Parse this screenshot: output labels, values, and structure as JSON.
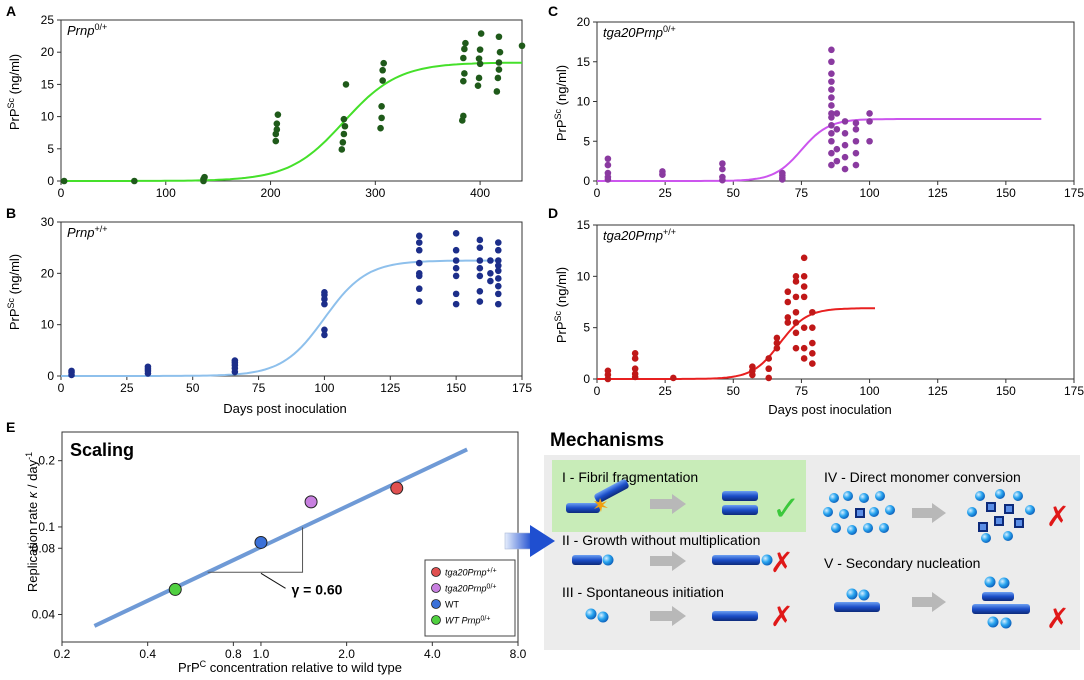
{
  "figure": {
    "x_axis_label": "Days post inoculation",
    "y_axis_label_base": "PrP",
    "y_axis_label_sup": "Sc",
    "y_axis_label_unit": " (ng/ml)"
  },
  "chart_data": [
    {
      "id": "A",
      "type": "scatter",
      "panel_letter": "A",
      "title_base": "Prnp",
      "title_sup": "0/+",
      "color": "#1f5a1a",
      "curve_color": "#45e02a",
      "xlim": [
        0,
        440
      ],
      "ylim": [
        0,
        25
      ],
      "xticks": [
        0,
        100,
        200,
        300,
        400
      ],
      "yticks": [
        0,
        5,
        10,
        15,
        20,
        25
      ],
      "xlabel": "",
      "fit": {
        "top": 18.4,
        "midpoint": 270,
        "scale": 26,
        "x_start": 0,
        "x_end": 440
      },
      "points": [
        [
          3,
          0.0
        ],
        [
          70,
          0.0
        ],
        [
          136,
          0.0
        ],
        [
          136,
          0.3
        ],
        [
          137,
          0.6
        ],
        [
          205,
          6.2
        ],
        [
          205,
          7.3
        ],
        [
          206,
          8.0
        ],
        [
          206,
          8.9
        ],
        [
          207,
          10.3
        ],
        [
          268,
          4.9
        ],
        [
          269,
          6.0
        ],
        [
          270,
          7.3
        ],
        [
          271,
          8.5
        ],
        [
          270,
          9.6
        ],
        [
          272,
          15.0
        ],
        [
          305,
          8.2
        ],
        [
          306,
          9.8
        ],
        [
          306,
          11.6
        ],
        [
          307,
          15.6
        ],
        [
          307,
          17.2
        ],
        [
          308,
          18.3
        ],
        [
          383,
          9.4
        ],
        [
          384,
          10.1
        ],
        [
          384,
          15.5
        ],
        [
          385,
          16.7
        ],
        [
          384,
          19.1
        ],
        [
          385,
          20.5
        ],
        [
          386,
          21.4
        ],
        [
          398,
          14.8
        ],
        [
          399,
          16.0
        ],
        [
          400,
          18.2
        ],
        [
          399,
          19.0
        ],
        [
          400,
          20.4
        ],
        [
          401,
          22.9
        ],
        [
          416,
          13.9
        ],
        [
          417,
          16.0
        ],
        [
          418,
          17.3
        ],
        [
          418,
          18.4
        ],
        [
          419,
          20.0
        ],
        [
          418,
          22.4
        ],
        [
          440,
          21.0
        ]
      ]
    },
    {
      "id": "B",
      "type": "scatter",
      "panel_letter": "B",
      "title_base": "Prnp",
      "title_sup": "+/+",
      "color": "#1c2e8a",
      "curve_color": "#8ec0ec",
      "xlim": [
        0,
        175
      ],
      "ylim": [
        0,
        30
      ],
      "xticks": [
        0,
        25,
        50,
        75,
        100,
        125,
        150,
        175
      ],
      "yticks": [
        0,
        10,
        20,
        30
      ],
      "xlabel": "Days post inoculation",
      "fit": {
        "top": 22.5,
        "midpoint": 100,
        "scale": 8,
        "x_start": 0,
        "x_end": 166
      },
      "points": [
        [
          4,
          0.2
        ],
        [
          4,
          0.7
        ],
        [
          4,
          1.0
        ],
        [
          33,
          0.5
        ],
        [
          33,
          1.0
        ],
        [
          33,
          1.4
        ],
        [
          33,
          1.8
        ],
        [
          66,
          0.8
        ],
        [
          66,
          1.5
        ],
        [
          66,
          2.1
        ],
        [
          66,
          2.6
        ],
        [
          66,
          3.0
        ],
        [
          100,
          8.0
        ],
        [
          100,
          9.0
        ],
        [
          100,
          14.0
        ],
        [
          100,
          15.0
        ],
        [
          100,
          15.8
        ],
        [
          100,
          16.3
        ],
        [
          136,
          14.5
        ],
        [
          136,
          17.0
        ],
        [
          136,
          19.5
        ],
        [
          136,
          20.0
        ],
        [
          136,
          22.0
        ],
        [
          136,
          24.5
        ],
        [
          136,
          26.0
        ],
        [
          136,
          27.3
        ],
        [
          150,
          14.0
        ],
        [
          150,
          16.0
        ],
        [
          150,
          19.5
        ],
        [
          150,
          21.0
        ],
        [
          150,
          22.5
        ],
        [
          150,
          24.5
        ],
        [
          150,
          27.8
        ],
        [
          159,
          14.5
        ],
        [
          159,
          16.5
        ],
        [
          159,
          19.5
        ],
        [
          159,
          21.0
        ],
        [
          159,
          22.5
        ],
        [
          159,
          25.0
        ],
        [
          159,
          26.5
        ],
        [
          163,
          18.5
        ],
        [
          163,
          20.0
        ],
        [
          163,
          22.5
        ],
        [
          166,
          14.0
        ],
        [
          166,
          16.0
        ],
        [
          166,
          17.5
        ],
        [
          166,
          19.0
        ],
        [
          166,
          20.5
        ],
        [
          166,
          21.5
        ],
        [
          166,
          22.5
        ],
        [
          166,
          24.5
        ],
        [
          166,
          26.0
        ]
      ]
    },
    {
      "id": "C",
      "type": "scatter",
      "panel_letter": "C",
      "title_base": "tga20Prnp",
      "title_sup": "0/+",
      "color": "#8a3aa0",
      "curve_color": "#cc55ee",
      "xlim": [
        0,
        175
      ],
      "ylim": [
        0,
        20
      ],
      "xticks": [
        0,
        25,
        50,
        75,
        100,
        125,
        150,
        175
      ],
      "yticks": [
        0,
        5,
        10,
        15,
        20
      ],
      "xlabel": "",
      "fit": {
        "top": 7.8,
        "midpoint": 75,
        "scale": 5,
        "x_start": 0,
        "x_end": 163
      },
      "points": [
        [
          4,
          0.2
        ],
        [
          4,
          0.5
        ],
        [
          4,
          1.0
        ],
        [
          4,
          2.0
        ],
        [
          4,
          2.8
        ],
        [
          24,
          0.8
        ],
        [
          24,
          1.2
        ],
        [
          46,
          0.1
        ],
        [
          46,
          0.5
        ],
        [
          46,
          1.5
        ],
        [
          46,
          2.2
        ],
        [
          68,
          0.2
        ],
        [
          68,
          0.4
        ],
        [
          68,
          0.7
        ],
        [
          68,
          1.0
        ],
        [
          86,
          2.0
        ],
        [
          86,
          3.5
        ],
        [
          86,
          5.0
        ],
        [
          86,
          6.0
        ],
        [
          86,
          7.0
        ],
        [
          86,
          8.0
        ],
        [
          86,
          8.5
        ],
        [
          86,
          9.5
        ],
        [
          86,
          10.5
        ],
        [
          86,
          11.5
        ],
        [
          86,
          12.5
        ],
        [
          86,
          13.5
        ],
        [
          86,
          15.0
        ],
        [
          86,
          16.5
        ],
        [
          88,
          2.5
        ],
        [
          88,
          4.0
        ],
        [
          88,
          6.5
        ],
        [
          88,
          8.5
        ],
        [
          91,
          1.5
        ],
        [
          91,
          3.0
        ],
        [
          91,
          4.5
        ],
        [
          91,
          6.0
        ],
        [
          91,
          7.5
        ],
        [
          95,
          2.0
        ],
        [
          95,
          3.5
        ],
        [
          95,
          5.0
        ],
        [
          95,
          6.5
        ],
        [
          95,
          7.3
        ],
        [
          100,
          5.0
        ],
        [
          100,
          7.5
        ],
        [
          100,
          8.5
        ]
      ]
    },
    {
      "id": "D",
      "type": "scatter",
      "panel_letter": "D",
      "title_base": "tga20Prnp",
      "title_sup": "+/+",
      "color": "#c01818",
      "curve_color": "#e82020",
      "xlim": [
        0,
        175
      ],
      "ylim": [
        0,
        15
      ],
      "xticks": [
        0,
        25,
        50,
        75,
        100,
        125,
        150,
        175
      ],
      "yticks": [
        0,
        5,
        10,
        15
      ],
      "xlabel": "Days post inoculation",
      "fit": {
        "top": 6.9,
        "midpoint": 67,
        "scale": 5,
        "x_start": 0,
        "x_end": 102
      },
      "points": [
        [
          4,
          0.0
        ],
        [
          4,
          0.4
        ],
        [
          4,
          0.8
        ],
        [
          14,
          0.2
        ],
        [
          14,
          0.5
        ],
        [
          14,
          1.0
        ],
        [
          14,
          2.0
        ],
        [
          14,
          2.5
        ],
        [
          28,
          0.1
        ],
        [
          57,
          0.4
        ],
        [
          57,
          0.8
        ],
        [
          57,
          1.2
        ],
        [
          63,
          0.1
        ],
        [
          63,
          1.0
        ],
        [
          63,
          2.0
        ],
        [
          66,
          3.0
        ],
        [
          66,
          3.5
        ],
        [
          66,
          4.0
        ],
        [
          70,
          5.5
        ],
        [
          70,
          6.0
        ],
        [
          70,
          7.5
        ],
        [
          70,
          8.5
        ],
        [
          73,
          3.0
        ],
        [
          73,
          4.5
        ],
        [
          73,
          5.5
        ],
        [
          73,
          6.5
        ],
        [
          73,
          8.0
        ],
        [
          73,
          9.5
        ],
        [
          73,
          10.0
        ],
        [
          76,
          2.0
        ],
        [
          76,
          3.0
        ],
        [
          76,
          5.0
        ],
        [
          76,
          8.0
        ],
        [
          76,
          9.0
        ],
        [
          76,
          10.0
        ],
        [
          76,
          11.8
        ],
        [
          79,
          1.5
        ],
        [
          79,
          2.5
        ],
        [
          79,
          3.5
        ],
        [
          79,
          5.0
        ],
        [
          79,
          6.5
        ]
      ]
    },
    {
      "id": "E",
      "type": "scatter",
      "panel_letter": "E",
      "title": "Scaling",
      "xlabel_base": "PrP",
      "xlabel_sup": "C",
      "xlabel_rest": " concentration relative to wild type",
      "ylabel_base": "Replication rate ",
      "ylabel_kappa": "κ",
      "ylabel_mid": " / day",
      "ylabel_sup": "-1",
      "x_scale": "log",
      "y_scale": "log",
      "xlim": [
        0.2,
        8.0
      ],
      "ylim": [
        0.03,
        0.27
      ],
      "xticks": [
        0.2,
        0.4,
        0.8,
        1.0,
        2.0,
        4.0,
        8.0
      ],
      "xtick_labels": [
        "0.2",
        "0.4",
        "0.8",
        "1.0",
        "2.0",
        "4.0",
        "8.0"
      ],
      "yticks": [
        0.04,
        0.08,
        0.1,
        0.2
      ],
      "ytick_labels": [
        "0.04",
        "0.08",
        "0.1",
        "0.2"
      ],
      "fit_line": {
        "x": [
          0.26,
          5.3
        ],
        "y": [
          0.0355,
          0.225
        ],
        "color": "#6f9ad6"
      },
      "slope_label": "γ = 0.60",
      "points": [
        {
          "name": "tga20Prnp+/+",
          "label_base": "tga20Prnp",
          "label_sup": "+/+",
          "x": 3.0,
          "y": 0.15,
          "color": "#e05050"
        },
        {
          "name": "tga20Prnp0/+",
          "label_base": "tga20Prnp",
          "label_sup": "0/+",
          "x": 1.5,
          "y": 0.13,
          "color": "#c880e0"
        },
        {
          "name": "WT",
          "label_base": "WT",
          "label_sup": "",
          "x": 1.0,
          "y": 0.085,
          "color": "#3a70d8"
        },
        {
          "name": "WT Prnp0/+",
          "label_base": "WT Prnp",
          "label_sup": "0/+",
          "x": 0.5,
          "y": 0.052,
          "color": "#50d040"
        }
      ]
    }
  ],
  "mechanisms": {
    "title": "Mechanisms",
    "items": [
      {
        "id": "I",
        "label": "I - Fibril fragmentation",
        "verdict": "✓"
      },
      {
        "id": "II",
        "label": "II - Growth without multiplication",
        "verdict": "✗"
      },
      {
        "id": "III",
        "label": "III - Spontaneous initiation",
        "verdict": "✗"
      },
      {
        "id": "IV",
        "label": "IV - Direct monomer conversion",
        "verdict": "✗"
      },
      {
        "id": "V",
        "label": "V - Secondary nucleation",
        "verdict": "✗"
      }
    ],
    "colors": {
      "background": "#ececec",
      "highlight": "#c8ecb8",
      "accept": "#3cc83c",
      "reject": "#e01818",
      "fibril": "#1e4fd0",
      "arrow": "#b8b8b8"
    }
  }
}
